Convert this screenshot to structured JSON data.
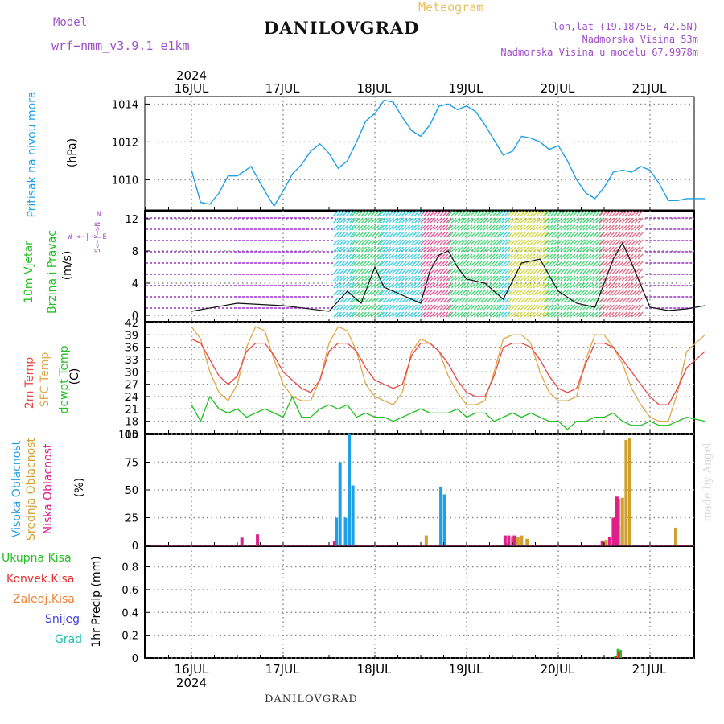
{
  "header": {
    "model_label": "Model",
    "model_name": "wrf−nmm_v3.9.1  e1km",
    "title": "DANILOVGRAD",
    "meteogram": "Meteogram",
    "coords": "lon,lat (19.1875E, 42.5N)",
    "elevation": "Nadmorska Visina 53m",
    "model_elevation": "Nadmorska Visina u modelu 67.9978m"
  },
  "footer": {
    "station": "DANILOVGRAD",
    "credit": "made by Angel"
  },
  "year_label": "2024",
  "days": [
    "16JUL",
    "17JUL",
    "18JUL",
    "19JUL",
    "20JUL",
    "21JUL"
  ],
  "labels": {
    "pressure": "Pritisak na nivou mora",
    "pressure_unit": "(hPa)",
    "wind_a": "10m Vjetar",
    "wind_b": "Brzina i Pravac",
    "wind_unit": "(m/s)",
    "compass_n": "N",
    "compass_mid": "W  <−|−>  E",
    "compass_s": "S<−|−>N",
    "temp_2m": "2m Temp",
    "temp_sfc": "SFC Temp",
    "temp_dewpt": "dewpt Temp",
    "temp_unit": "(C)",
    "cloud_high": "Visoka Oblacnost",
    "cloud_mid": "Srednja Oblacnost",
    "cloud_low": "Niska Oblacnost",
    "cloud_unit": "(%)",
    "precip_unit": "1hr Precip (mm)",
    "precip_total": "Ukupna  Kisa",
    "precip_conv": "Konvek.Kisa",
    "precip_frz": "Zaledj.Kisa",
    "precip_snow": "Snijeg",
    "precip_hail": "Grad"
  },
  "colors": {
    "pressure": "#1ea0e6",
    "temp_2m": "#e84848",
    "temp_sfc": "#e0a848",
    "dewpt": "#22c022",
    "cloud_high": "#1ea0e6",
    "cloud_mid": "#d0a030",
    "cloud_low": "#e0208a",
    "ukupna": "#22c022",
    "konvek": "#e83030",
    "zaledj": "#f08030",
    "snijeg": "#4040e0",
    "grad": "#20c0b0",
    "model": "#a050c8"
  },
  "chart_data": [
    {
      "type": "line",
      "ylabel": "(hPa)",
      "yticks": [
        1010,
        1012,
        1014
      ],
      "ylim": [
        1008.4,
        1014.4
      ],
      "x_days": [
        0,
        0.1,
        0.2,
        0.3,
        0.4,
        0.5,
        0.65,
        0.8,
        0.9,
        1.0,
        1.1,
        1.2,
        1.3,
        1.4,
        1.5,
        1.6,
        1.7,
        1.8,
        1.9,
        2.0,
        2.1,
        2.2,
        2.3,
        2.4,
        2.5,
        2.6,
        2.7,
        2.8,
        2.9,
        3.0,
        3.1,
        3.2,
        3.3,
        3.4,
        3.5,
        3.6,
        3.7,
        3.8,
        3.9,
        4.0,
        4.1,
        4.2,
        4.3,
        4.4,
        4.5,
        4.6,
        4.7,
        4.8,
        4.9,
        5.0,
        5.1,
        5.2,
        5.3,
        5.4,
        5.5,
        5.6
      ],
      "values": [
        1010.5,
        1008.8,
        1008.7,
        1009.3,
        1010.2,
        1010.2,
        1010.7,
        1009.4,
        1008.6,
        1009.4,
        1010.3,
        1010.8,
        1011.5,
        1011.9,
        1011.4,
        1010.6,
        1011.0,
        1012.0,
        1013.1,
        1013.5,
        1014.2,
        1014.1,
        1013.3,
        1012.6,
        1012.3,
        1012.9,
        1013.9,
        1014.0,
        1013.7,
        1013.9,
        1013.6,
        1012.9,
        1012.1,
        1011.3,
        1011.5,
        1012.3,
        1012.2,
        1012.0,
        1011.6,
        1011.8,
        1011.0,
        1010.0,
        1009.3,
        1009.0,
        1009.6,
        1010.4,
        1010.5,
        1010.4,
        1010.7,
        1010.5,
        1009.8,
        1008.9,
        1008.9,
        1009.0,
        1009.0,
        1009.0
      ]
    },
    {
      "type": "line",
      "ylabel": "(m/s)",
      "yticks": [
        0,
        4,
        8,
        12
      ],
      "ylim": [
        -0.8,
        13
      ],
      "x_days": [
        0,
        0.5,
        1.0,
        1.5,
        1.7,
        1.85,
        2.0,
        2.1,
        2.3,
        2.5,
        2.6,
        2.7,
        2.8,
        2.9,
        3.0,
        3.2,
        3.4,
        3.6,
        3.8,
        4.0,
        4.2,
        4.4,
        4.6,
        4.7,
        4.8,
        5.0,
        5.2,
        5.4,
        5.6
      ],
      "values": [
        0.5,
        1.5,
        1.2,
        0.5,
        3.0,
        1.5,
        6.0,
        3.5,
        2.5,
        1.5,
        5.5,
        7.5,
        8.0,
        6.0,
        4.5,
        4.0,
        2.0,
        6.5,
        7.0,
        3.0,
        1.5,
        1.0,
        7.0,
        9.0,
        6.5,
        1.0,
        0.6,
        0.8,
        1.2
      ]
    },
    {
      "type": "line",
      "ylabel": "(C)",
      "yticks": [
        15,
        18,
        21,
        24,
        27,
        30,
        33,
        36,
        39,
        42
      ],
      "ylim": [
        15,
        42
      ],
      "series": [
        {
          "name": "2m Temp",
          "x_days": [
            0,
            0.1,
            0.2,
            0.3,
            0.4,
            0.5,
            0.6,
            0.7,
            0.8,
            0.9,
            1.0,
            1.1,
            1.2,
            1.3,
            1.4,
            1.5,
            1.6,
            1.7,
            1.8,
            1.9,
            2.0,
            2.1,
            2.2,
            2.3,
            2.4,
            2.5,
            2.6,
            2.7,
            2.8,
            2.9,
            3.0,
            3.1,
            3.2,
            3.3,
            3.4,
            3.5,
            3.6,
            3.7,
            3.8,
            3.9,
            4.0,
            4.1,
            4.2,
            4.3,
            4.4,
            4.5,
            4.6,
            4.7,
            4.8,
            4.9,
            5.0,
            5.1,
            5.2,
            5.3,
            5.4,
            5.6
          ],
          "values": [
            38,
            37,
            33,
            29,
            27,
            29,
            35,
            37,
            37,
            34,
            30,
            28,
            26,
            25,
            28,
            35,
            37,
            37,
            35,
            31,
            28,
            27,
            26,
            27,
            34,
            37,
            37,
            35,
            32,
            28,
            25,
            24,
            24,
            29,
            36,
            37,
            37,
            36,
            33,
            29,
            26,
            25,
            26,
            32,
            37,
            37,
            36,
            33,
            30,
            27,
            24,
            22,
            22,
            26,
            31,
            35
          ]
        },
        {
          "name": "SFC Temp",
          "x_days": [
            0,
            0.1,
            0.2,
            0.3,
            0.4,
            0.5,
            0.6,
            0.7,
            0.8,
            0.9,
            1.0,
            1.1,
            1.2,
            1.3,
            1.4,
            1.5,
            1.6,
            1.7,
            1.8,
            1.9,
            2.0,
            2.1,
            2.2,
            2.3,
            2.4,
            2.5,
            2.6,
            2.7,
            2.8,
            2.9,
            3.0,
            3.1,
            3.2,
            3.3,
            3.4,
            3.5,
            3.6,
            3.7,
            3.8,
            3.9,
            4.0,
            4.1,
            4.2,
            4.3,
            4.4,
            4.5,
            4.6,
            4.7,
            4.8,
            4.9,
            5.0,
            5.1,
            5.2,
            5.3,
            5.4,
            5.6
          ],
          "values": [
            41,
            38,
            30,
            25,
            23,
            27,
            36,
            41,
            40,
            33,
            27,
            24,
            23,
            23,
            28,
            37,
            41,
            40,
            35,
            27,
            24,
            23,
            22,
            25,
            35,
            38,
            37,
            35,
            29,
            25,
            22,
            22,
            23,
            30,
            38,
            39,
            39,
            37,
            30,
            25,
            23,
            23,
            24,
            33,
            39,
            39,
            36,
            32,
            26,
            22,
            19,
            18,
            18,
            25,
            35,
            39
          ]
        },
        {
          "name": "dewpt Temp",
          "x_days": [
            0,
            0.1,
            0.2,
            0.3,
            0.4,
            0.5,
            0.6,
            0.7,
            0.8,
            0.9,
            1.0,
            1.1,
            1.2,
            1.3,
            1.4,
            1.5,
            1.6,
            1.7,
            1.8,
            1.9,
            2.0,
            2.1,
            2.2,
            2.3,
            2.4,
            2.5,
            2.6,
            2.7,
            2.8,
            2.9,
            3.0,
            3.1,
            3.2,
            3.3,
            3.4,
            3.5,
            3.6,
            3.7,
            3.8,
            3.9,
            4.0,
            4.1,
            4.2,
            4.3,
            4.4,
            4.5,
            4.6,
            4.7,
            4.8,
            4.9,
            5.0,
            5.1,
            5.2,
            5.3,
            5.4,
            5.6
          ],
          "values": [
            22,
            18,
            24,
            21,
            20,
            21,
            19,
            20,
            21,
            20,
            19,
            24,
            19,
            19,
            21,
            22,
            21,
            22,
            19,
            20,
            19,
            19,
            18,
            19,
            20,
            21,
            20,
            20,
            20,
            21,
            19,
            20,
            20,
            18,
            19,
            20,
            19,
            20,
            19,
            18,
            18,
            16,
            18,
            18,
            19,
            19,
            20,
            18,
            17,
            17,
            18,
            17,
            17,
            18,
            19,
            18
          ]
        }
      ]
    },
    {
      "type": "bar",
      "ylabel": "(%)",
      "yticks": [
        0,
        25,
        50,
        75,
        100
      ],
      "ylim": [
        0,
        100
      ],
      "series": [
        {
          "name": "Visoka Oblacnost",
          "x_days": [
            1.58,
            1.62,
            1.68,
            1.72,
            1.76,
            2.72,
            2.76,
            3.45,
            4.62,
            4.66
          ],
          "values": [
            25,
            75,
            25,
            100,
            54,
            53,
            46,
            2,
            3,
            17
          ]
        },
        {
          "name": "Srednja Oblacnost",
          "x_days": [
            2.56,
            3.5,
            3.56,
            3.6,
            3.66,
            4.52,
            4.66,
            4.7,
            4.74,
            4.78,
            5.28
          ],
          "values": [
            9,
            8,
            8,
            9,
            6,
            5,
            42,
            43,
            95,
            97,
            16
          ]
        },
        {
          "name": "Niska Oblacnost",
          "x_days": [
            0.55,
            0.72,
            1.56,
            3.42,
            3.46,
            3.52,
            4.48,
            4.56,
            4.6,
            4.64
          ],
          "values": [
            7,
            10,
            4,
            9,
            9,
            9,
            4,
            8,
            25,
            44
          ]
        }
      ]
    },
    {
      "type": "bar",
      "ylabel": "1hr Precip (mm)",
      "yticks": [
        0,
        0.2,
        0.4,
        0.6,
        0.8
      ],
      "ylim": [
        0,
        0.98
      ],
      "series": [
        {
          "name": "Ukupna  Kisa",
          "x_days": [
            4.62,
            4.65,
            4.68
          ],
          "values": [
            0.02,
            0.08,
            0.07
          ]
        },
        {
          "name": "Konvek.Kisa",
          "x_days": [
            4.63,
            4.66
          ],
          "values": [
            0.02,
            0.06
          ]
        },
        {
          "name": "Zaledj.Kisa",
          "x_days": [],
          "values": []
        },
        {
          "name": "Snijeg",
          "x_days": [],
          "values": []
        },
        {
          "name": "Grad",
          "x_days": [],
          "values": []
        }
      ]
    }
  ]
}
